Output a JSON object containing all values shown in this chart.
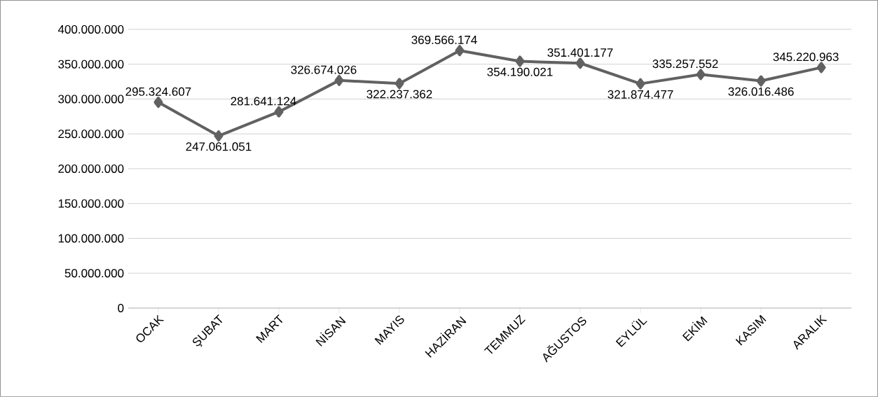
{
  "chart_data": {
    "type": "line",
    "categories": [
      "OCAK",
      "ŞUBAT",
      "MART",
      "NİSAN",
      "MAYIS",
      "HAZİRAN",
      "TEMMUZ",
      "AĞUSTOS",
      "EYLÜL",
      "EKİM",
      "KASIM",
      "ARALIK"
    ],
    "series": [
      {
        "color": "#616161",
        "values": [
          295324607,
          247061051,
          281641124,
          326674026,
          322237362,
          369566174,
          354190021,
          351401177,
          321874477,
          335257552,
          326016486,
          345220963
        ],
        "value_labels": [
          "295.324.607",
          "247.061.051",
          "281.641.124",
          "326.674.026",
          "322.237.362",
          "369.566.174",
          "354.190.021",
          "351.401.177",
          "321.874.477",
          "335.257.552",
          "326.016.486",
          "345.220.963"
        ]
      }
    ],
    "ylim": [
      0,
      400000000
    ],
    "yticks": [
      0,
      {
        "value": 50000000,
        "label": "50.000.000"
      },
      {
        "value": 100000000,
        "label": "100.000.000"
      },
      {
        "value": 150000000,
        "label": "150.000.000"
      },
      {
        "value": 200000000,
        "label": "200.000.000"
      },
      {
        "value": 250000000,
        "label": "250.000.000"
      },
      {
        "value": 300000000,
        "label": "300.000.000"
      },
      {
        "value": 350000000,
        "label": "350.000.000"
      },
      {
        "value": 400000000,
        "label": "400.000.000"
      }
    ],
    "grid": "y",
    "marker": "diamond",
    "line_style": "solid"
  }
}
